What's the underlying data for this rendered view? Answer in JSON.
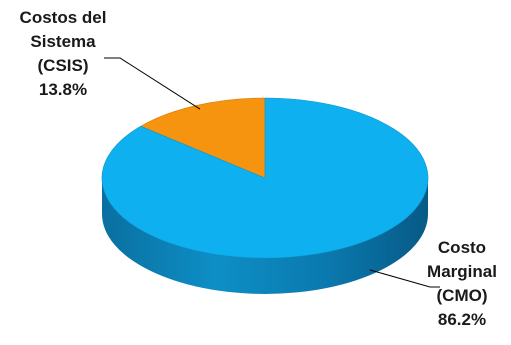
{
  "chart_data": {
    "type": "pie",
    "style": "3d",
    "series": [
      {
        "label_lines": [
          "Costos del",
          "Sistema",
          "(CSIS)"
        ],
        "percent_label": "13.8%",
        "value": 13.8,
        "color": "#f7940f"
      },
      {
        "label_lines": [
          "Costo",
          "Marginal",
          "(CMO)"
        ],
        "percent_label": "86.2%",
        "value": 86.2,
        "color": "#0fb0ef"
      }
    ]
  }
}
